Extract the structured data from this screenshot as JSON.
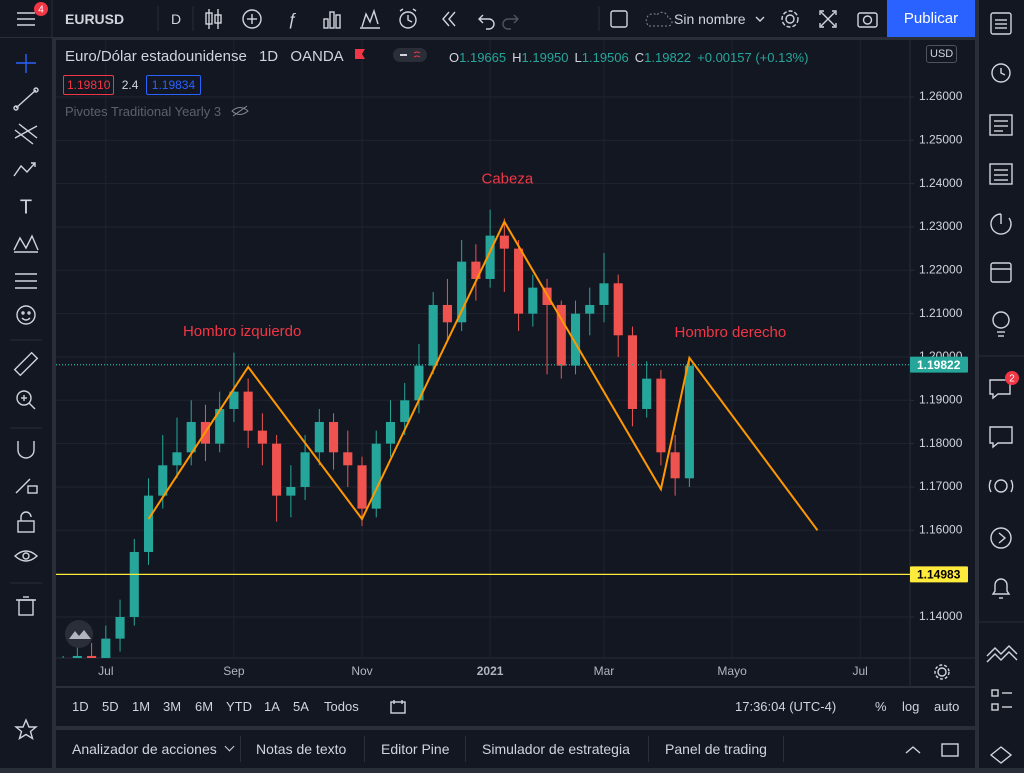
{
  "toolbar": {
    "menu_badge": "4",
    "symbol": "EURUSD",
    "interval": "D",
    "layout_name": "Sin nombre",
    "publish": "Publicar"
  },
  "legend": {
    "description": "Euro/Dólar estadounidense",
    "interval": "1D",
    "exchange": "OANDA",
    "ohlc": [
      {
        "key": "O",
        "value": "1.19665"
      },
      {
        "key": "H",
        "value": "1.19950"
      },
      {
        "key": "L",
        "value": "1.19506"
      },
      {
        "key": "C",
        "value": "1.19822"
      }
    ],
    "change": "+0.00157 (+0.13%)",
    "bid": "1.19810",
    "spread": "2.4",
    "ask": "1.19834",
    "indicator": "Pivotes Traditional Yearly 3",
    "currency": "USD"
  },
  "chart_data": {
    "type": "candlestick",
    "categories": [
      null,
      null,
      null,
      "Jul",
      null,
      null,
      null,
      null,
      null,
      null,
      null,
      null,
      "Sep",
      null,
      null,
      null,
      null,
      null,
      null,
      null,
      null,
      "Nov",
      null,
      null,
      null,
      null,
      null,
      null,
      null,
      null,
      "2021",
      null,
      null,
      null,
      null,
      null,
      null,
      null,
      "Mar",
      null,
      null,
      null,
      null,
      null,
      null,
      null,
      null,
      "Mayo",
      null,
      null,
      null,
      null,
      null,
      null,
      null,
      null,
      "Jul",
      null,
      null,
      null
    ],
    "open": [
      1.126,
      1.128,
      1.131,
      1.127,
      1.135,
      1.14,
      1.155,
      1.168,
      1.175,
      1.178,
      1.185,
      1.18,
      1.188,
      1.192,
      1.183,
      1.18,
      1.168,
      1.17,
      1.178,
      1.185,
      1.178,
      1.175,
      1.165,
      1.18,
      1.185,
      1.19,
      1.198,
      1.212,
      1.208,
      1.222,
      1.218,
      1.228,
      1.225,
      1.21,
      1.216,
      1.212,
      1.198,
      1.21,
      1.212,
      1.217,
      1.205,
      1.188,
      1.195,
      1.178,
      1.172,
      null,
      null,
      null,
      null,
      null,
      null,
      null,
      null,
      null,
      null,
      null,
      null,
      null,
      null,
      null
    ],
    "high": [
      1.131,
      1.134,
      1.134,
      1.138,
      1.144,
      1.158,
      1.172,
      1.182,
      1.186,
      1.19,
      1.189,
      1.192,
      1.201,
      1.195,
      1.187,
      1.182,
      1.175,
      1.182,
      1.188,
      1.187,
      1.183,
      1.177,
      1.183,
      1.19,
      1.194,
      1.203,
      1.215,
      1.218,
      1.227,
      1.226,
      1.234,
      1.232,
      1.227,
      1.219,
      1.218,
      1.213,
      1.213,
      1.216,
      1.224,
      1.219,
      1.207,
      1.199,
      1.197,
      1.182,
      1.2,
      null,
      null,
      null,
      null,
      null,
      null,
      null,
      null,
      null,
      null,
      null,
      null,
      null,
      null,
      null
    ],
    "low": [
      1.122,
      1.125,
      1.124,
      1.125,
      1.132,
      1.138,
      1.152,
      1.165,
      1.172,
      1.175,
      1.176,
      1.178,
      1.185,
      1.179,
      1.175,
      1.162,
      1.163,
      1.167,
      1.175,
      1.174,
      1.17,
      1.161,
      1.163,
      1.177,
      1.182,
      1.187,
      1.196,
      1.204,
      1.206,
      1.213,
      1.216,
      1.215,
      1.206,
      1.207,
      1.196,
      1.195,
      1.196,
      1.205,
      1.208,
      1.2,
      1.184,
      1.186,
      1.175,
      1.168,
      1.17,
      null,
      null,
      null,
      null,
      null,
      null,
      null,
      null,
      null,
      null,
      null,
      null,
      null,
      null,
      null
    ],
    "close": [
      1.128,
      1.131,
      1.127,
      1.135,
      1.14,
      1.155,
      1.168,
      1.175,
      1.178,
      1.185,
      1.18,
      1.188,
      1.192,
      1.183,
      1.18,
      1.168,
      1.17,
      1.178,
      1.185,
      1.178,
      1.175,
      1.165,
      1.18,
      1.185,
      1.19,
      1.198,
      1.212,
      1.208,
      1.222,
      1.218,
      1.228,
      1.225,
      1.21,
      1.216,
      1.212,
      1.198,
      1.21,
      1.212,
      1.217,
      1.205,
      1.188,
      1.195,
      1.178,
      1.172,
      1.198,
      null,
      null,
      null,
      null,
      null,
      null,
      null,
      null,
      null,
      null,
      null,
      null,
      null,
      null,
      null
    ],
    "up_color": "#26a69a",
    "down_color": "#ef5350",
    "ylim": [
      1.13053,
      1.27315
    ],
    "yticks": [
      {
        "value": 1.26,
        "label": "1.26000"
      },
      {
        "value": 1.25,
        "label": "1.25000"
      },
      {
        "value": 1.24,
        "label": "1.24000"
      },
      {
        "value": 1.23,
        "label": "1.23000"
      },
      {
        "value": 1.22,
        "label": "1.22000"
      },
      {
        "value": 1.21,
        "label": "1.21000"
      },
      {
        "value": 1.2,
        "label": "1.20000"
      },
      {
        "value": 1.19,
        "label": "1.19000"
      },
      {
        "value": 1.18,
        "label": "1.18000"
      },
      {
        "value": 1.17,
        "label": "1.17000"
      },
      {
        "value": 1.16,
        "label": "1.16000"
      },
      {
        "value": 1.14,
        "label": "1.14000"
      }
    ],
    "grid": true,
    "price_lines": [
      {
        "value": 1.19822,
        "label": "1.19822",
        "color": "#26a69a",
        "text_color": "#ffffff",
        "style": "dotted"
      },
      {
        "value": 1.14983,
        "label": "1.14983",
        "color": "#ffeb3b",
        "text_color": "#000000",
        "style": "solid"
      }
    ],
    "pattern": {
      "color": "#ff9800",
      "x": [
        6,
        13,
        21,
        31,
        42,
        44,
        53
      ],
      "y": [
        1.1626,
        1.1977,
        1.1626,
        1.2312,
        1.1695,
        1.1998,
        1.16
      ]
    },
    "annotations": [
      "Hombro izquierdo",
      "Cabeza",
      "Hombro derecho"
    ],
    "annotation_color": "#f23645"
  },
  "bottom_bar": {
    "ranges": [
      "1D",
      "5D",
      "1M",
      "3M",
      "6M",
      "YTD",
      "1A",
      "5A",
      "Todos"
    ],
    "clock": "17:36:04 (UTC-4)",
    "options": [
      "%",
      "log",
      "auto"
    ]
  },
  "tabs": [
    "Analizador de acciones",
    "Notas de texto",
    "Editor Pine",
    "Simulador de estrategia",
    "Panel de trading"
  ],
  "sidebar_badge": "2"
}
